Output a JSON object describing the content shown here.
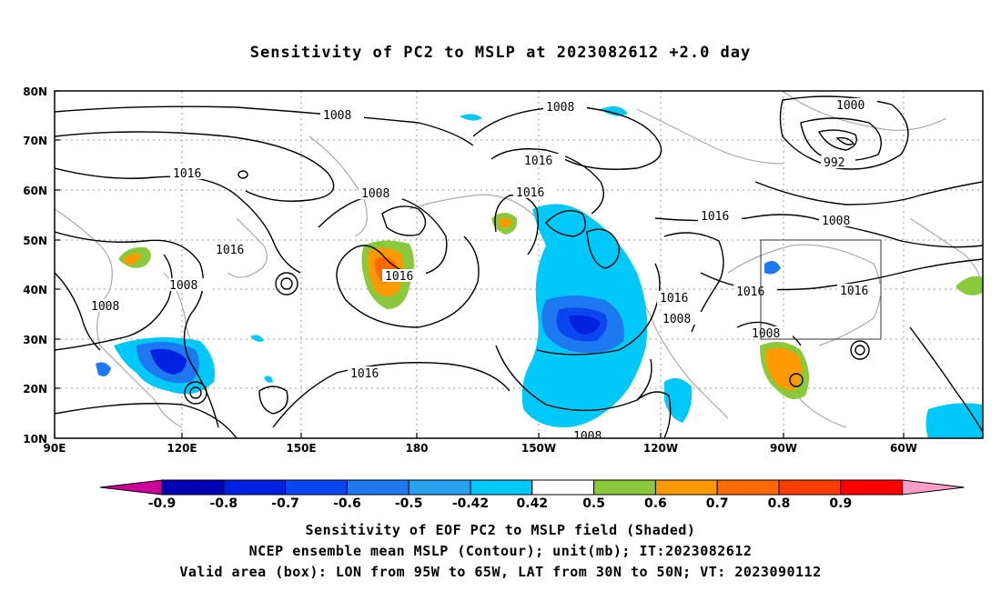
{
  "title": "Sensitivity of PC2 to MSLP at 2023082612 +2.0 day",
  "captions": [
    "Sensitivity of EOF PC2 to MSLP field (Shaded)",
    "NCEP ensemble mean MSLP (Contour); unit(mb); IT:2023082612",
    "Valid area (box): LON from 95W to 65W, LAT from 30N to 50N; VT: 2023090112"
  ],
  "axes": {
    "lon_labels": [
      "90E",
      "120E",
      "150E",
      "180",
      "150W",
      "120W",
      "90W",
      "60W"
    ],
    "lat_labels": [
      "10N",
      "20N",
      "30N",
      "40N",
      "50N",
      "60N",
      "70N",
      "80N"
    ]
  },
  "contour_labels": [
    "1008",
    "1008",
    "1016",
    "1016",
    "1008",
    "1016",
    "1008",
    "1016",
    "1016",
    "1008",
    "1016",
    "1008",
    "1000",
    "992",
    "1016",
    "1008",
    "1016",
    "1016",
    "1008",
    "1008"
  ],
  "colorbar": {
    "labels": [
      "-0.9",
      "-0.8",
      "-0.7",
      "-0.6",
      "-0.5",
      "-0.42",
      "0.42",
      "0.5",
      "0.6",
      "0.7",
      "0.8",
      "0.9"
    ],
    "colors": [
      "#cc0099",
      "#0000b4",
      "#0022e0",
      "#0a46f0",
      "#1e78f0",
      "#2aa0f0",
      "#00c8f8",
      "#ffffff",
      "#8cc83c",
      "#ff9900",
      "#ff6a00",
      "#ff3c00",
      "#ff0000",
      "#ff9ec8"
    ]
  },
  "box": {
    "lon_from": "95W",
    "lon_to": "65W",
    "lat_from": "30N",
    "lat_to": "50N"
  }
}
